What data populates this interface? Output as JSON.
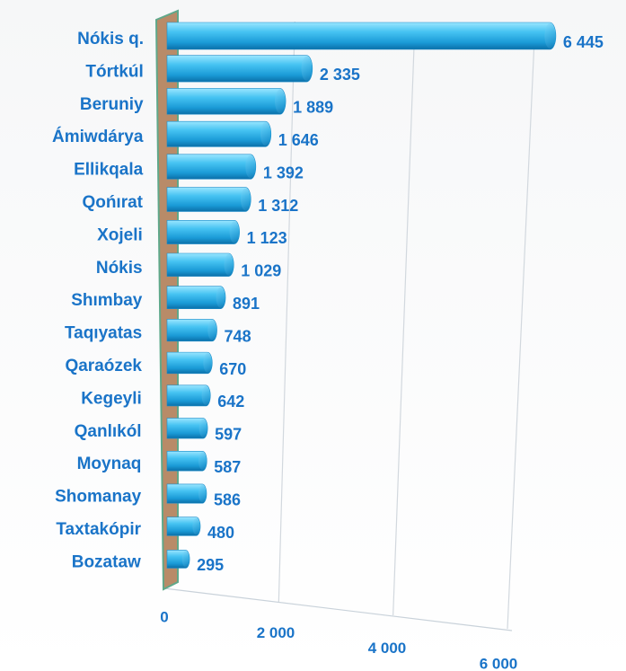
{
  "chart_data": {
    "type": "bar",
    "categories": [
      "Nókis q.",
      "Tórtkúl",
      "Beruniy",
      "Ámiwdárya",
      "Ellikqala",
      "Qońırat",
      "Xojeli",
      "Nókis",
      "Shımbay",
      "Taqıyatas",
      "Qaraózek",
      "Kegeyli",
      "Qanlıkól",
      "Moynaq",
      "Shomanay",
      "Taxtakópir",
      "Bozataw"
    ],
    "values": [
      6445,
      2335,
      1889,
      1646,
      1392,
      1312,
      1123,
      1029,
      891,
      748,
      670,
      642,
      597,
      587,
      586,
      480,
      295
    ],
    "value_labels": [
      "6 445",
      "2 335",
      "1 889",
      "1 646",
      "1 392",
      "1 312",
      "1 123",
      "1 029",
      "891",
      "748",
      "670",
      "642",
      "597",
      "587",
      "586",
      "480",
      "295"
    ],
    "color": "#2fb4ec",
    "xlim": [
      0,
      6000
    ],
    "xticks": [
      0,
      {
        "value": 2000,
        "label": "2 000"
      },
      {
        "value": 4000,
        "label": "4 000"
      },
      {
        "value": 6000,
        "label": "6 000"
      }
    ],
    "grid": true
  }
}
